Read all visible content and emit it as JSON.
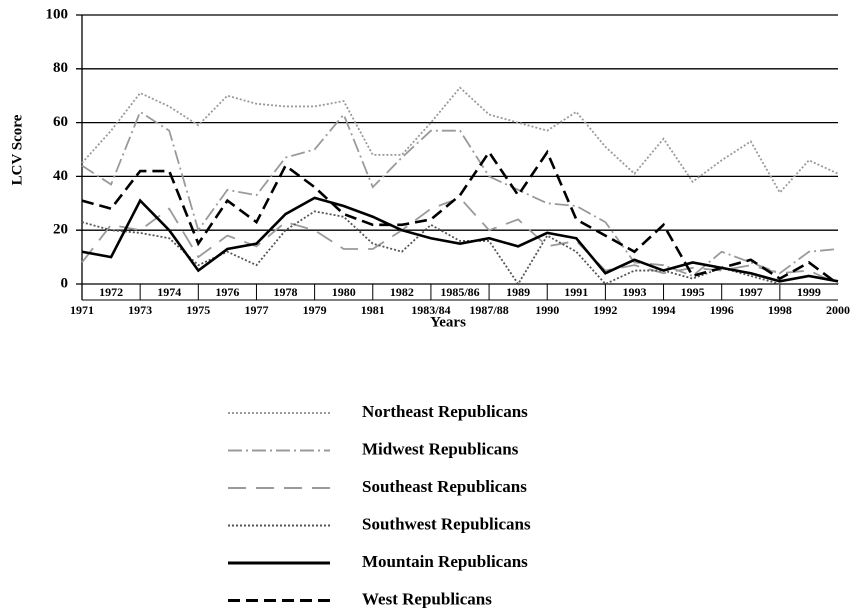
{
  "chart_data": {
    "type": "line",
    "x_label": "Years",
    "y_label": "LCV Score",
    "categories": [
      "1971",
      "1972",
      "1973",
      "1974",
      "1975",
      "1976",
      "1977",
      "1978",
      "1979",
      "1980",
      "1981",
      "1982",
      "1983/84",
      "1985/86",
      "1987/88",
      "1989",
      "1990",
      "1991",
      "1992",
      "1993",
      "1994",
      "1995",
      "1996",
      "1997",
      "1998",
      "1999",
      "2000"
    ],
    "ylim": [
      0,
      100
    ],
    "yticks": [
      0,
      20,
      40,
      60,
      80,
      100
    ],
    "grid": true,
    "series": [
      {
        "name": "Northeast Republicans",
        "color": "#9a9a9a",
        "line_style": "dotted",
        "values": [
          45,
          57,
          71,
          66,
          59,
          70,
          67,
          66,
          66,
          68,
          48,
          48,
          60,
          73,
          63,
          60,
          57,
          64,
          51,
          41,
          54,
          38,
          46,
          53,
          34,
          46,
          41
        ]
      },
      {
        "name": "Midwest Republicans",
        "color": "#9a9a9a",
        "line_style": "dash-dot",
        "values": [
          44,
          37,
          64,
          57,
          20,
          35,
          33,
          47,
          50,
          63,
          36,
          47,
          57,
          57,
          40,
          35,
          30,
          29,
          23,
          8,
          7,
          3,
          12,
          8,
          4,
          12,
          13
        ]
      },
      {
        "name": "Southeast Republicans",
        "color": "#9a9a9a",
        "line_style": "long-dash",
        "values": [
          8,
          22,
          20,
          28,
          10,
          18,
          14,
          23,
          20,
          13,
          13,
          20,
          28,
          32,
          20,
          24,
          14,
          16,
          5,
          7,
          4,
          6,
          5,
          7,
          4,
          5,
          0
        ]
      },
      {
        "name": "Southwest Republicans",
        "color": "#555555",
        "line_style": "dotted",
        "values": [
          23,
          20,
          19,
          17,
          7,
          12,
          7,
          20,
          27,
          25,
          15,
          12,
          22,
          16,
          16,
          0,
          18,
          12,
          0,
          5,
          5,
          2,
          6,
          3,
          0,
          0,
          0
        ]
      },
      {
        "name": "Mountain Republicans",
        "color": "#000000",
        "line_style": "solid",
        "values": [
          12,
          10,
          31,
          20,
          5,
          13,
          15,
          26,
          32,
          29,
          25,
          20,
          17,
          15,
          17,
          14,
          19,
          17,
          4,
          9,
          5,
          8,
          6,
          4,
          1,
          3,
          1
        ]
      },
      {
        "name": "West Republicans",
        "color": "#000000",
        "line_style": "dashed",
        "values": [
          31,
          28,
          42,
          42,
          15,
          31,
          23,
          44,
          36,
          26,
          22,
          22,
          24,
          33,
          49,
          33,
          49,
          24,
          18,
          12,
          22,
          3,
          6,
          9,
          2,
          8,
          0
        ]
      }
    ]
  }
}
